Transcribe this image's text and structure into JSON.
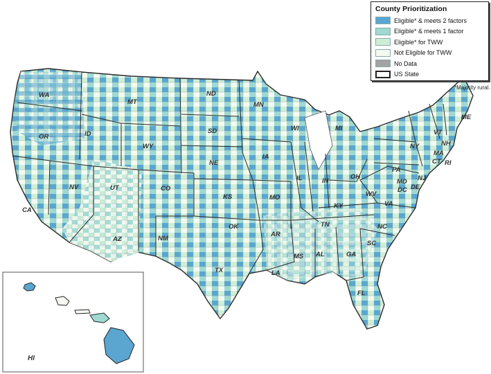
{
  "legend": {
    "title": "County Prioritization",
    "items": [
      {
        "label": "Eligible* & meets 2 factors",
        "color": "#5aa6d0"
      },
      {
        "label": "Eligible* & meets 1 factor",
        "color": "#9fdad2"
      },
      {
        "label": "Eligible* for TWW",
        "color": "#cfeed6"
      },
      {
        "label": "Not Eligible for TWW",
        "color": "#f4faf1"
      },
      {
        "label": "No Data",
        "color": "#a3a3a3"
      },
      {
        "label": "US State",
        "color": "#ffffff"
      }
    ]
  },
  "note": "*Majority rural.",
  "states": [
    "WA",
    "OR",
    "CA",
    "ID",
    "NV",
    "MT",
    "WY",
    "UT",
    "AZ",
    "CO",
    "NM",
    "ND",
    "SD",
    "NE",
    "KS",
    "OK",
    "TX",
    "MN",
    "IA",
    "MO",
    "AR",
    "LA",
    "WI",
    "IL",
    "MI",
    "IN",
    "KY",
    "TN",
    "MS",
    "AL",
    "GA",
    "FL",
    "OH",
    "WV",
    "VA",
    "NC",
    "SC",
    "PA",
    "NY",
    "MD",
    "DC",
    "DE",
    "NJ",
    "CT",
    "RI",
    "MA",
    "VT",
    "NH",
    "ME"
  ],
  "inset": {
    "label": "HI"
  }
}
